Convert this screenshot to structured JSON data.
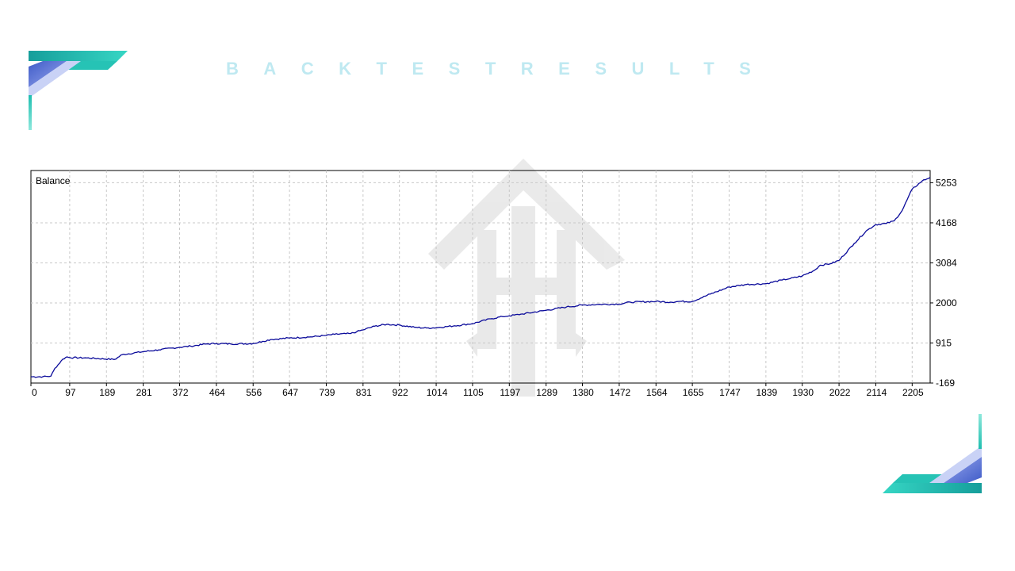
{
  "header": {
    "title": "BACKTESTRESULTS"
  },
  "colors": {
    "line": "#0a0a9a",
    "grid": "#c8c8c8",
    "accent_teal": "#1fbfb0",
    "accent_blue": "#4a66d0",
    "watermark": "#e4e4e4"
  },
  "icons": {
    "corner_top_left": "decorative-stripes-icon",
    "corner_bottom_right": "decorative-stripes-icon",
    "watermark": "arrow-logo-icon"
  },
  "chart_data": {
    "type": "line",
    "title": "Balance",
    "xlabel": "",
    "ylabel": "",
    "xlim": [
      0,
      2250
    ],
    "ylim": [
      -169,
      5584
    ],
    "grid": true,
    "x_ticks": [
      0,
      97,
      189,
      281,
      372,
      464,
      556,
      647,
      739,
      831,
      922,
      1014,
      1105,
      1197,
      1289,
      1380,
      1472,
      1564,
      1655,
      1747,
      1839,
      1930,
      2022,
      2114,
      2205
    ],
    "y_ticks": [
      -169,
      915,
      2000,
      3084,
      4168,
      5253
    ],
    "series": [
      {
        "x": [
          0,
          30,
          50,
          60,
          80,
          90,
          97,
          140,
          210,
          228,
          281,
          320,
          372,
          400,
          440,
          464,
          500,
          556,
          580,
          600,
          647,
          700,
          739,
          760,
          800,
          815,
          831,
          860,
          890,
          922,
          960,
          990,
          1014,
          1060,
          1105,
          1150,
          1180,
          1197,
          1230,
          1289,
          1340,
          1380,
          1420,
          1472,
          1500,
          1564,
          1600,
          1620,
          1655,
          1700,
          1747,
          1790,
          1839,
          1880,
          1900,
          1930,
          1960,
          1975,
          2000,
          2022,
          2060,
          2090,
          2114,
          2140,
          2160,
          2180,
          2205,
          2230,
          2250
        ],
        "y": [
          2,
          2,
          20,
          230,
          480,
          540,
          520,
          510,
          470,
          600,
          680,
          730,
          800,
          830,
          890,
          900,
          890,
          900,
          960,
          1010,
          1050,
          1080,
          1120,
          1150,
          1170,
          1220,
          1270,
          1370,
          1420,
          1400,
          1340,
          1320,
          1330,
          1380,
          1440,
          1570,
          1630,
          1650,
          1700,
          1800,
          1890,
          1940,
          1960,
          1970,
          2020,
          2040,
          2020,
          2040,
          2040,
          2240,
          2430,
          2500,
          2520,
          2620,
          2660,
          2730,
          2880,
          3020,
          3060,
          3150,
          3610,
          3950,
          4120,
          4150,
          4220,
          4500,
          5080,
          5300,
          5400
        ]
      }
    ]
  }
}
